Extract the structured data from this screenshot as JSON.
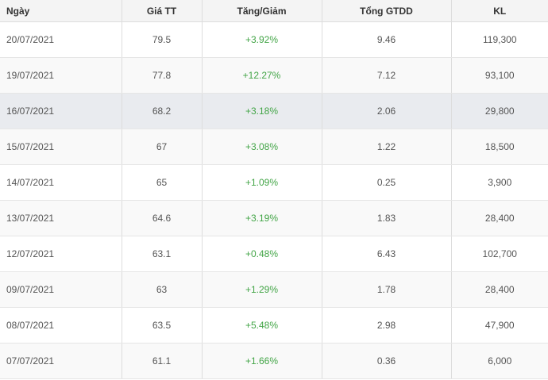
{
  "headers": {
    "date": "Ngày",
    "price": "Giá TT",
    "change": "Tăng/Giảm",
    "gtdd": "Tổng GTDD",
    "kl": "KL"
  },
  "rows": [
    {
      "date": "20/07/2021",
      "price": "79.5",
      "change": "+3.92%",
      "gtdd": "9.46",
      "kl": "119,300"
    },
    {
      "date": "19/07/2021",
      "price": "77.8",
      "change": "+12.27%",
      "gtdd": "7.12",
      "kl": "93,100"
    },
    {
      "date": "16/07/2021",
      "price": "68.2",
      "change": "+3.18%",
      "gtdd": "2.06",
      "kl": "29,800"
    },
    {
      "date": "15/07/2021",
      "price": "67",
      "change": "+3.08%",
      "gtdd": "1.22",
      "kl": "18,500"
    },
    {
      "date": "14/07/2021",
      "price": "65",
      "change": "+1.09%",
      "gtdd": "0.25",
      "kl": "3,900"
    },
    {
      "date": "13/07/2021",
      "price": "64.6",
      "change": "+3.19%",
      "gtdd": "1.83",
      "kl": "28,400"
    },
    {
      "date": "12/07/2021",
      "price": "63.1",
      "change": "+0.48%",
      "gtdd": "6.43",
      "kl": "102,700"
    },
    {
      "date": "09/07/2021",
      "price": "63",
      "change": "+1.29%",
      "gtdd": "1.78",
      "kl": "28,400"
    },
    {
      "date": "08/07/2021",
      "price": "63.5",
      "change": "+5.48%",
      "gtdd": "2.98",
      "kl": "47,900"
    },
    {
      "date": "07/07/2021",
      "price": "61.1",
      "change": "+1.66%",
      "gtdd": "0.36",
      "kl": "6,000"
    }
  ],
  "colors": {
    "positive": "#43a547",
    "header_bg": "#f4f4f4",
    "hover_row": "#e9ebef"
  }
}
